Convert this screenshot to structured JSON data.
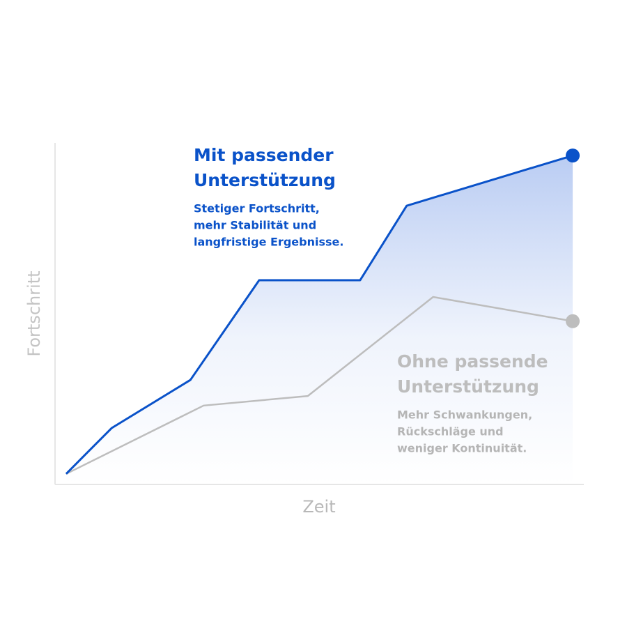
{
  "chart_data": {
    "type": "line",
    "xlabel": "Zeit",
    "ylabel": "Fortschritt",
    "xlim": [
      0,
      100
    ],
    "ylim": [
      0,
      100
    ],
    "series": [
      {
        "name": [
          "Mit passender",
          "Unterstützung"
        ],
        "description": [
          "Stetiger Fortschritt,",
          "mehr Stabilität und",
          "langfristige Ergebnisse."
        ],
        "color": "#0a52c9",
        "x": [
          2.1,
          10.7,
          25.6,
          38.6,
          57.7,
          66.5,
          97.9
        ],
        "values": [
          3.1,
          16.5,
          30.6,
          59.8,
          59.8,
          81.6,
          96.3
        ]
      },
      {
        "name": [
          "Ohne passende",
          "Unterstützung"
        ],
        "description": [
          "Mehr Schwankungen,",
          "Rückschläge und",
          "weniger Kontinuität."
        ],
        "color": "#bdbdbd",
        "x": [
          2.1,
          28.1,
          47.8,
          71.5,
          97.9
        ],
        "values": [
          3.1,
          23.1,
          25.9,
          54.9,
          47.8
        ]
      }
    ]
  }
}
